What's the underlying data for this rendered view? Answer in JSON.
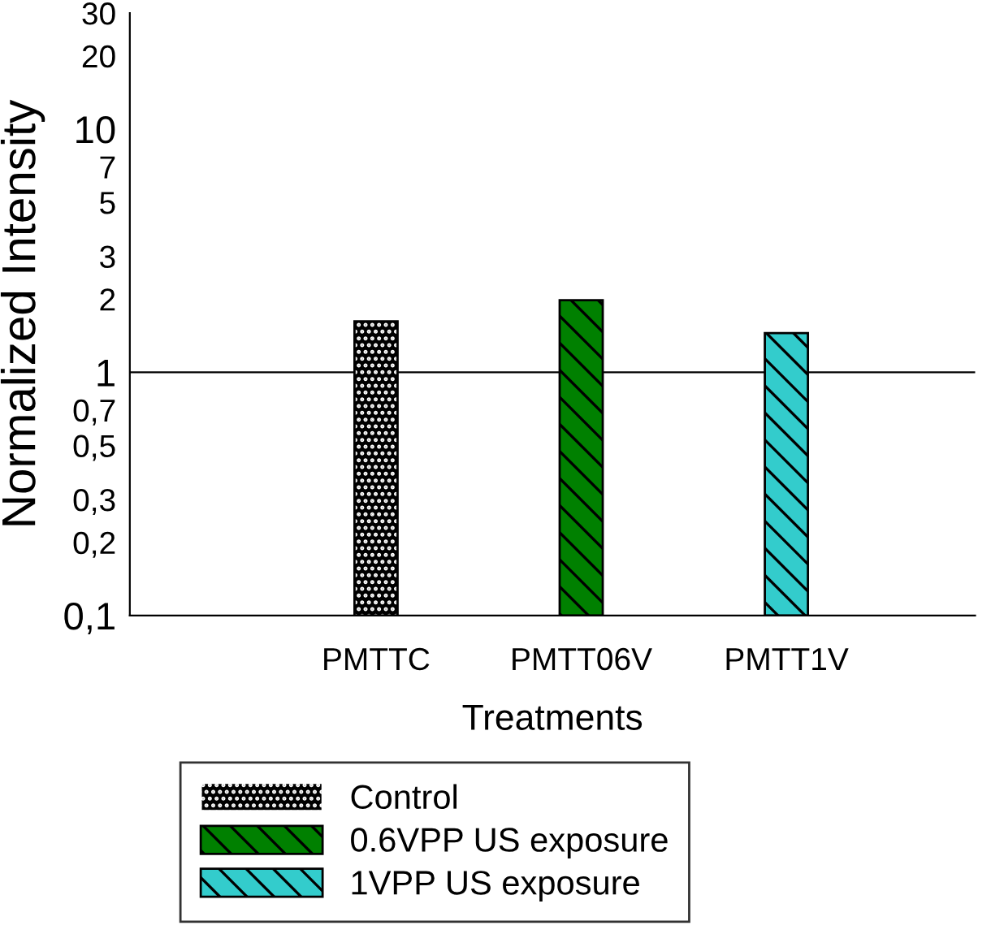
{
  "chart_data": {
    "type": "bar",
    "xlabel": "Treatments",
    "ylabel": "Normalized Intensity",
    "categories": [
      "PMTTC",
      "PMTT06V",
      "PMTT1V"
    ],
    "series": [
      {
        "name": "Control",
        "color": "#000000",
        "values": [
          1.62,
          null,
          null
        ]
      },
      {
        "name": "0.6VPP US exposure",
        "color": "#008000",
        "values": [
          null,
          1.98,
          null
        ]
      },
      {
        "name": "1VPP US exposure",
        "color": "#33cccc",
        "values": [
          null,
          null,
          1.45
        ]
      }
    ],
    "log": true,
    "ylim": [
      0.1,
      30
    ],
    "yticks": [
      {
        "value": 0.1,
        "label": "0,1"
      },
      {
        "value": 0.2,
        "label": "0,2"
      },
      {
        "value": 0.3,
        "label": "0,3"
      },
      {
        "value": 0.5,
        "label": "0,5"
      },
      {
        "value": 0.7,
        "label": "0,7"
      },
      1,
      2,
      3,
      5,
      7,
      10,
      20,
      30
    ],
    "ref_lines": [
      {
        "axis": "y",
        "value": 1,
        "color": "#000000"
      }
    ],
    "grid": false,
    "legend": "bottom"
  }
}
